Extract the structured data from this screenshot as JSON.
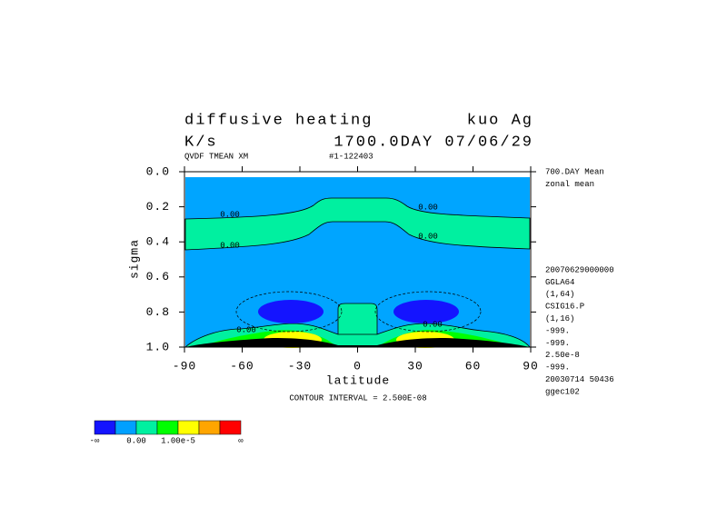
{
  "chart_data": {
    "type": "contour",
    "title": "diffusive heating",
    "title_right": "kuo Ag",
    "subtitle": "K/s",
    "subtitle_right": "1700.0DAY 07/06/29",
    "variable_note": "QVDF TMEAN XM",
    "run_note": "#1-122403",
    "x_label": "latitude",
    "y_label": "sigma",
    "footer": "CONTOUR INTERVAL = 2.500E-08",
    "xlim": [
      -90,
      90
    ],
    "ylim": [
      1,
      0
    ],
    "xticks": [
      -90,
      -60,
      -30,
      0,
      30,
      60,
      90
    ],
    "yticks": [
      {
        "value": 0,
        "label": "0.0"
      },
      0.2,
      0.4,
      0.6,
      0.8,
      {
        "value": 1,
        "label": "1.0"
      }
    ],
    "contour_labels": [
      "0.00",
      "0.00",
      "0.00",
      "0.00",
      "0.00",
      "0.00"
    ],
    "info_top": [
      "700.DAY Mean",
      "zonal mean"
    ],
    "info_bottom": [
      "20070629000000",
      "GGLA64",
      "(1,64)",
      "CSIG16.P",
      "(1,16)",
      "-999.",
      "-999.",
      "2.50e-8",
      "-999.",
      "20030714  50436",
      "ggec102"
    ],
    "colorbar": {
      "colors": [
        "#1414ff",
        "#00a0ff",
        "#00f0a0",
        "#00ff00",
        "#ffff00",
        "#ffa500",
        "#ff0000"
      ],
      "labels": [
        "-∞",
        "0.00",
        "1.00e-5",
        "∞"
      ]
    }
  }
}
